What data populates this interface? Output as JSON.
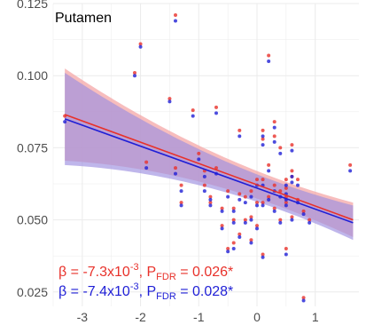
{
  "chart_data": {
    "type": "scatter",
    "title": "Putamen",
    "xlabel": "",
    "ylabel": "",
    "xlim": [
      -3.5,
      1.75
    ],
    "ylim": [
      0.02,
      0.125
    ],
    "xticks": [
      -3,
      -2,
      -1,
      0,
      1
    ],
    "xtick_labels": [
      "-3",
      "-2",
      "-1",
      "0",
      "1"
    ],
    "yticks": [
      0.025,
      0.05,
      0.075,
      0.1,
      0.125
    ],
    "ytick_labels": [
      "0.025",
      "0.050",
      "0.075",
      "0.100",
      "0.125"
    ],
    "grid": true,
    "colors": {
      "red": "#e8312a",
      "blue": "#1f1fd6",
      "red_band": "#f4a7a7",
      "blue_band": "#9d8fe0",
      "grid": "#ebebeb",
      "tick": "#4d4d4d"
    },
    "series": [
      {
        "color": "red",
        "points": [
          [
            -3.3,
            0.086
          ],
          [
            -2.1,
            0.101
          ],
          [
            -2.0,
            0.111
          ],
          [
            -1.9,
            0.07
          ],
          [
            -1.5,
            0.092
          ],
          [
            -1.4,
            0.068
          ],
          [
            -1.3,
            0.056
          ],
          [
            -1.3,
            0.062
          ],
          [
            -1.4,
            0.121
          ],
          [
            -1.1,
            0.088
          ],
          [
            -1.0,
            0.073
          ],
          [
            -0.9,
            0.067
          ],
          [
            -0.9,
            0.062
          ],
          [
            -0.8,
            0.058
          ],
          [
            -0.8,
            0.056
          ],
          [
            -0.7,
            0.089
          ],
          [
            -0.7,
            0.068
          ],
          [
            -0.6,
            0.054
          ],
          [
            -0.6,
            0.048
          ],
          [
            -0.5,
            0.06
          ],
          [
            -0.5,
            0.04
          ],
          [
            -0.4,
            0.054
          ],
          [
            -0.4,
            0.05
          ],
          [
            -0.4,
            0.042
          ],
          [
            -0.3,
            0.081
          ],
          [
            -0.3,
            0.059
          ],
          [
            -0.3,
            0.045
          ],
          [
            -0.2,
            0.058
          ],
          [
            -0.2,
            0.05
          ],
          [
            -0.1,
            0.06
          ],
          [
            -0.1,
            0.051
          ],
          [
            -0.1,
            0.043
          ],
          [
            0.0,
            0.064
          ],
          [
            0.0,
            0.056
          ],
          [
            0.0,
            0.048
          ],
          [
            0.1,
            0.081
          ],
          [
            0.1,
            0.078
          ],
          [
            0.1,
            0.064
          ],
          [
            0.1,
            0.056
          ],
          [
            0.1,
            0.038
          ],
          [
            0.2,
            0.107
          ],
          [
            0.2,
            0.069
          ],
          [
            0.2,
            0.058
          ],
          [
            0.3,
            0.084
          ],
          [
            0.3,
            0.079
          ],
          [
            0.3,
            0.062
          ],
          [
            0.3,
            0.054
          ],
          [
            0.4,
            0.075
          ],
          [
            0.4,
            0.06
          ],
          [
            0.4,
            0.05
          ],
          [
            0.5,
            0.064
          ],
          [
            0.5,
            0.061
          ],
          [
            0.5,
            0.058
          ],
          [
            0.5,
            0.04
          ],
          [
            0.5,
            0.056
          ],
          [
            0.6,
            0.076
          ],
          [
            0.6,
            0.067
          ],
          [
            0.6,
            0.065
          ],
          [
            0.6,
            0.051
          ],
          [
            0.7,
            0.064
          ],
          [
            0.7,
            0.057
          ],
          [
            0.8,
            0.053
          ],
          [
            0.9,
            0.05
          ],
          [
            0.8,
            0.023
          ],
          [
            1.6,
            0.069
          ]
        ]
      },
      {
        "color": "blue",
        "points": [
          [
            -3.3,
            0.084
          ],
          [
            -2.1,
            0.1
          ],
          [
            -2.0,
            0.11
          ],
          [
            -1.9,
            0.068
          ],
          [
            -1.5,
            0.091
          ],
          [
            -1.4,
            0.066
          ],
          [
            -1.3,
            0.055
          ],
          [
            -1.3,
            0.06
          ],
          [
            -1.4,
            0.119
          ],
          [
            -1.1,
            0.086
          ],
          [
            -1.0,
            0.071
          ],
          [
            -0.9,
            0.065
          ],
          [
            -0.9,
            0.06
          ],
          [
            -0.8,
            0.057
          ],
          [
            -0.8,
            0.055
          ],
          [
            -0.7,
            0.087
          ],
          [
            -0.7,
            0.066
          ],
          [
            -0.6,
            0.053
          ],
          [
            -0.6,
            0.047
          ],
          [
            -0.5,
            0.058
          ],
          [
            -0.5,
            0.039
          ],
          [
            -0.4,
            0.053
          ],
          [
            -0.4,
            0.049
          ],
          [
            -0.4,
            0.04
          ],
          [
            -0.3,
            0.079
          ],
          [
            -0.3,
            0.057
          ],
          [
            -0.3,
            0.044
          ],
          [
            -0.2,
            0.056
          ],
          [
            -0.2,
            0.049
          ],
          [
            -0.1,
            0.058
          ],
          [
            -0.1,
            0.05
          ],
          [
            -0.1,
            0.042
          ],
          [
            0.0,
            0.062
          ],
          [
            0.0,
            0.055
          ],
          [
            0.0,
            0.047
          ],
          [
            0.1,
            0.079
          ],
          [
            0.1,
            0.076
          ],
          [
            0.1,
            0.062
          ],
          [
            0.1,
            0.055
          ],
          [
            0.1,
            0.037
          ],
          [
            0.2,
            0.105
          ],
          [
            0.2,
            0.067
          ],
          [
            0.2,
            0.057
          ],
          [
            0.3,
            0.082
          ],
          [
            0.3,
            0.077
          ],
          [
            0.3,
            0.06
          ],
          [
            0.3,
            0.053
          ],
          [
            0.4,
            0.073
          ],
          [
            0.4,
            0.058
          ],
          [
            0.4,
            0.049
          ],
          [
            0.5,
            0.062
          ],
          [
            0.5,
            0.059
          ],
          [
            0.5,
            0.057
          ],
          [
            0.5,
            0.038
          ],
          [
            0.5,
            0.055
          ],
          [
            0.6,
            0.074
          ],
          [
            0.6,
            0.065
          ],
          [
            0.6,
            0.063
          ],
          [
            0.6,
            0.05
          ],
          [
            0.7,
            0.062
          ],
          [
            0.7,
            0.056
          ],
          [
            0.8,
            0.052
          ],
          [
            0.9,
            0.049
          ],
          [
            0.8,
            0.022
          ],
          [
            1.6,
            0.067
          ]
        ]
      }
    ],
    "fits": [
      {
        "color": "red",
        "x": [
          -3.3,
          1.65
        ],
        "y": [
          0.0865,
          0.05
        ],
        "ci_low": [
          0.0705,
          0.044
        ],
        "ci_high": [
          0.1025,
          0.056
        ]
      },
      {
        "color": "blue",
        "x": [
          -3.3,
          1.65
        ],
        "y": [
          0.085,
          0.049
        ],
        "ci_low": [
          0.069,
          0.043
        ],
        "ci_high": [
          0.101,
          0.055
        ]
      }
    ],
    "annotations": [
      {
        "color": "red",
        "beta_prefix": "β = -7.3x10",
        "beta_exp": "-3",
        "p_mid": ", P",
        "p_sub": "FDR",
        "p_val": " = 0.026*"
      },
      {
        "color": "blue",
        "beta_prefix": "β = -7.4x10",
        "beta_exp": "-3",
        "p_mid": ", P",
        "p_sub": "FDR",
        "p_val": " = 0.028*"
      }
    ]
  }
}
